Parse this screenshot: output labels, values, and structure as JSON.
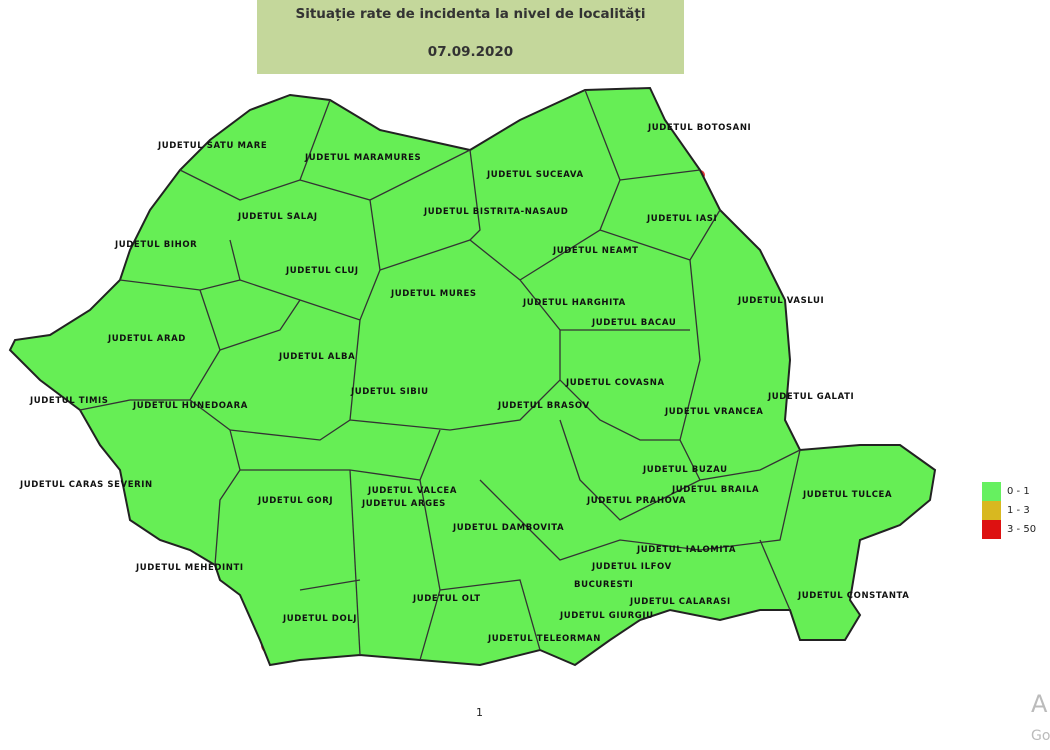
{
  "header": {
    "title": "Situație rate de incidenta la nivel de localități",
    "date": "07.09.2020"
  },
  "map": {
    "region": "Romania",
    "counties": [
      "JUDETUL SATU MARE",
      "JUDETUL MARAMURES",
      "JUDETUL BOTOSANI",
      "JUDETUL SUCEAVA",
      "JUDETUL SALAJ",
      "JUDETUL BISTRITA-NASAUD",
      "JUDETUL IASI",
      "JUDETUL BIHOR",
      "JUDETUL NEAMT",
      "JUDETUL CLUJ",
      "JUDETUL MURES",
      "JUDETUL HARGHITA",
      "JUDETUL VASLUI",
      "JUDETUL BACAU",
      "JUDETUL ARAD",
      "JUDETUL ALBA",
      "JUDETUL COVASNA",
      "JUDETUL SIBIU",
      "JUDETUL TIMIS",
      "JUDETUL HUNEDOARA",
      "JUDETUL GALATI",
      "JUDETUL BRASOV",
      "JUDETUL VRANCEA",
      "JUDETUL BUZAU",
      "JUDETUL CARAS SEVERIN",
      "JUDETUL BRAILA",
      "JUDETUL TULCEA",
      "JUDETUL VALCEA",
      "JUDETUL GORJ",
      "JUDETUL ARGES",
      "JUDETUL PRAHOVA",
      "JUDETUL DAMBOVITA",
      "JUDETUL IALOMITA",
      "JUDETUL MEHEDINTI",
      "JUDETUL ILFOV",
      "BUCURESTI",
      "JUDETUL CONSTANTA",
      "JUDETUL OLT",
      "JUDETUL CALARASI",
      "JUDETUL DOLJ",
      "JUDETUL GIURGIU",
      "JUDETUL TELEORMAN"
    ],
    "colors": {
      "base": "#66ee55",
      "border": "#222222",
      "title_bg": "#c4d79b"
    }
  },
  "legend": [
    {
      "label": "0 - 1",
      "color": "#66f060"
    },
    {
      "label": "1 - 3",
      "color": "#d8b820"
    },
    {
      "label": "3 - 50",
      "color": "#dd1111"
    }
  ],
  "footer": {
    "page_number": "1"
  },
  "watermark": {
    "line1": "A",
    "line2": "Go"
  }
}
